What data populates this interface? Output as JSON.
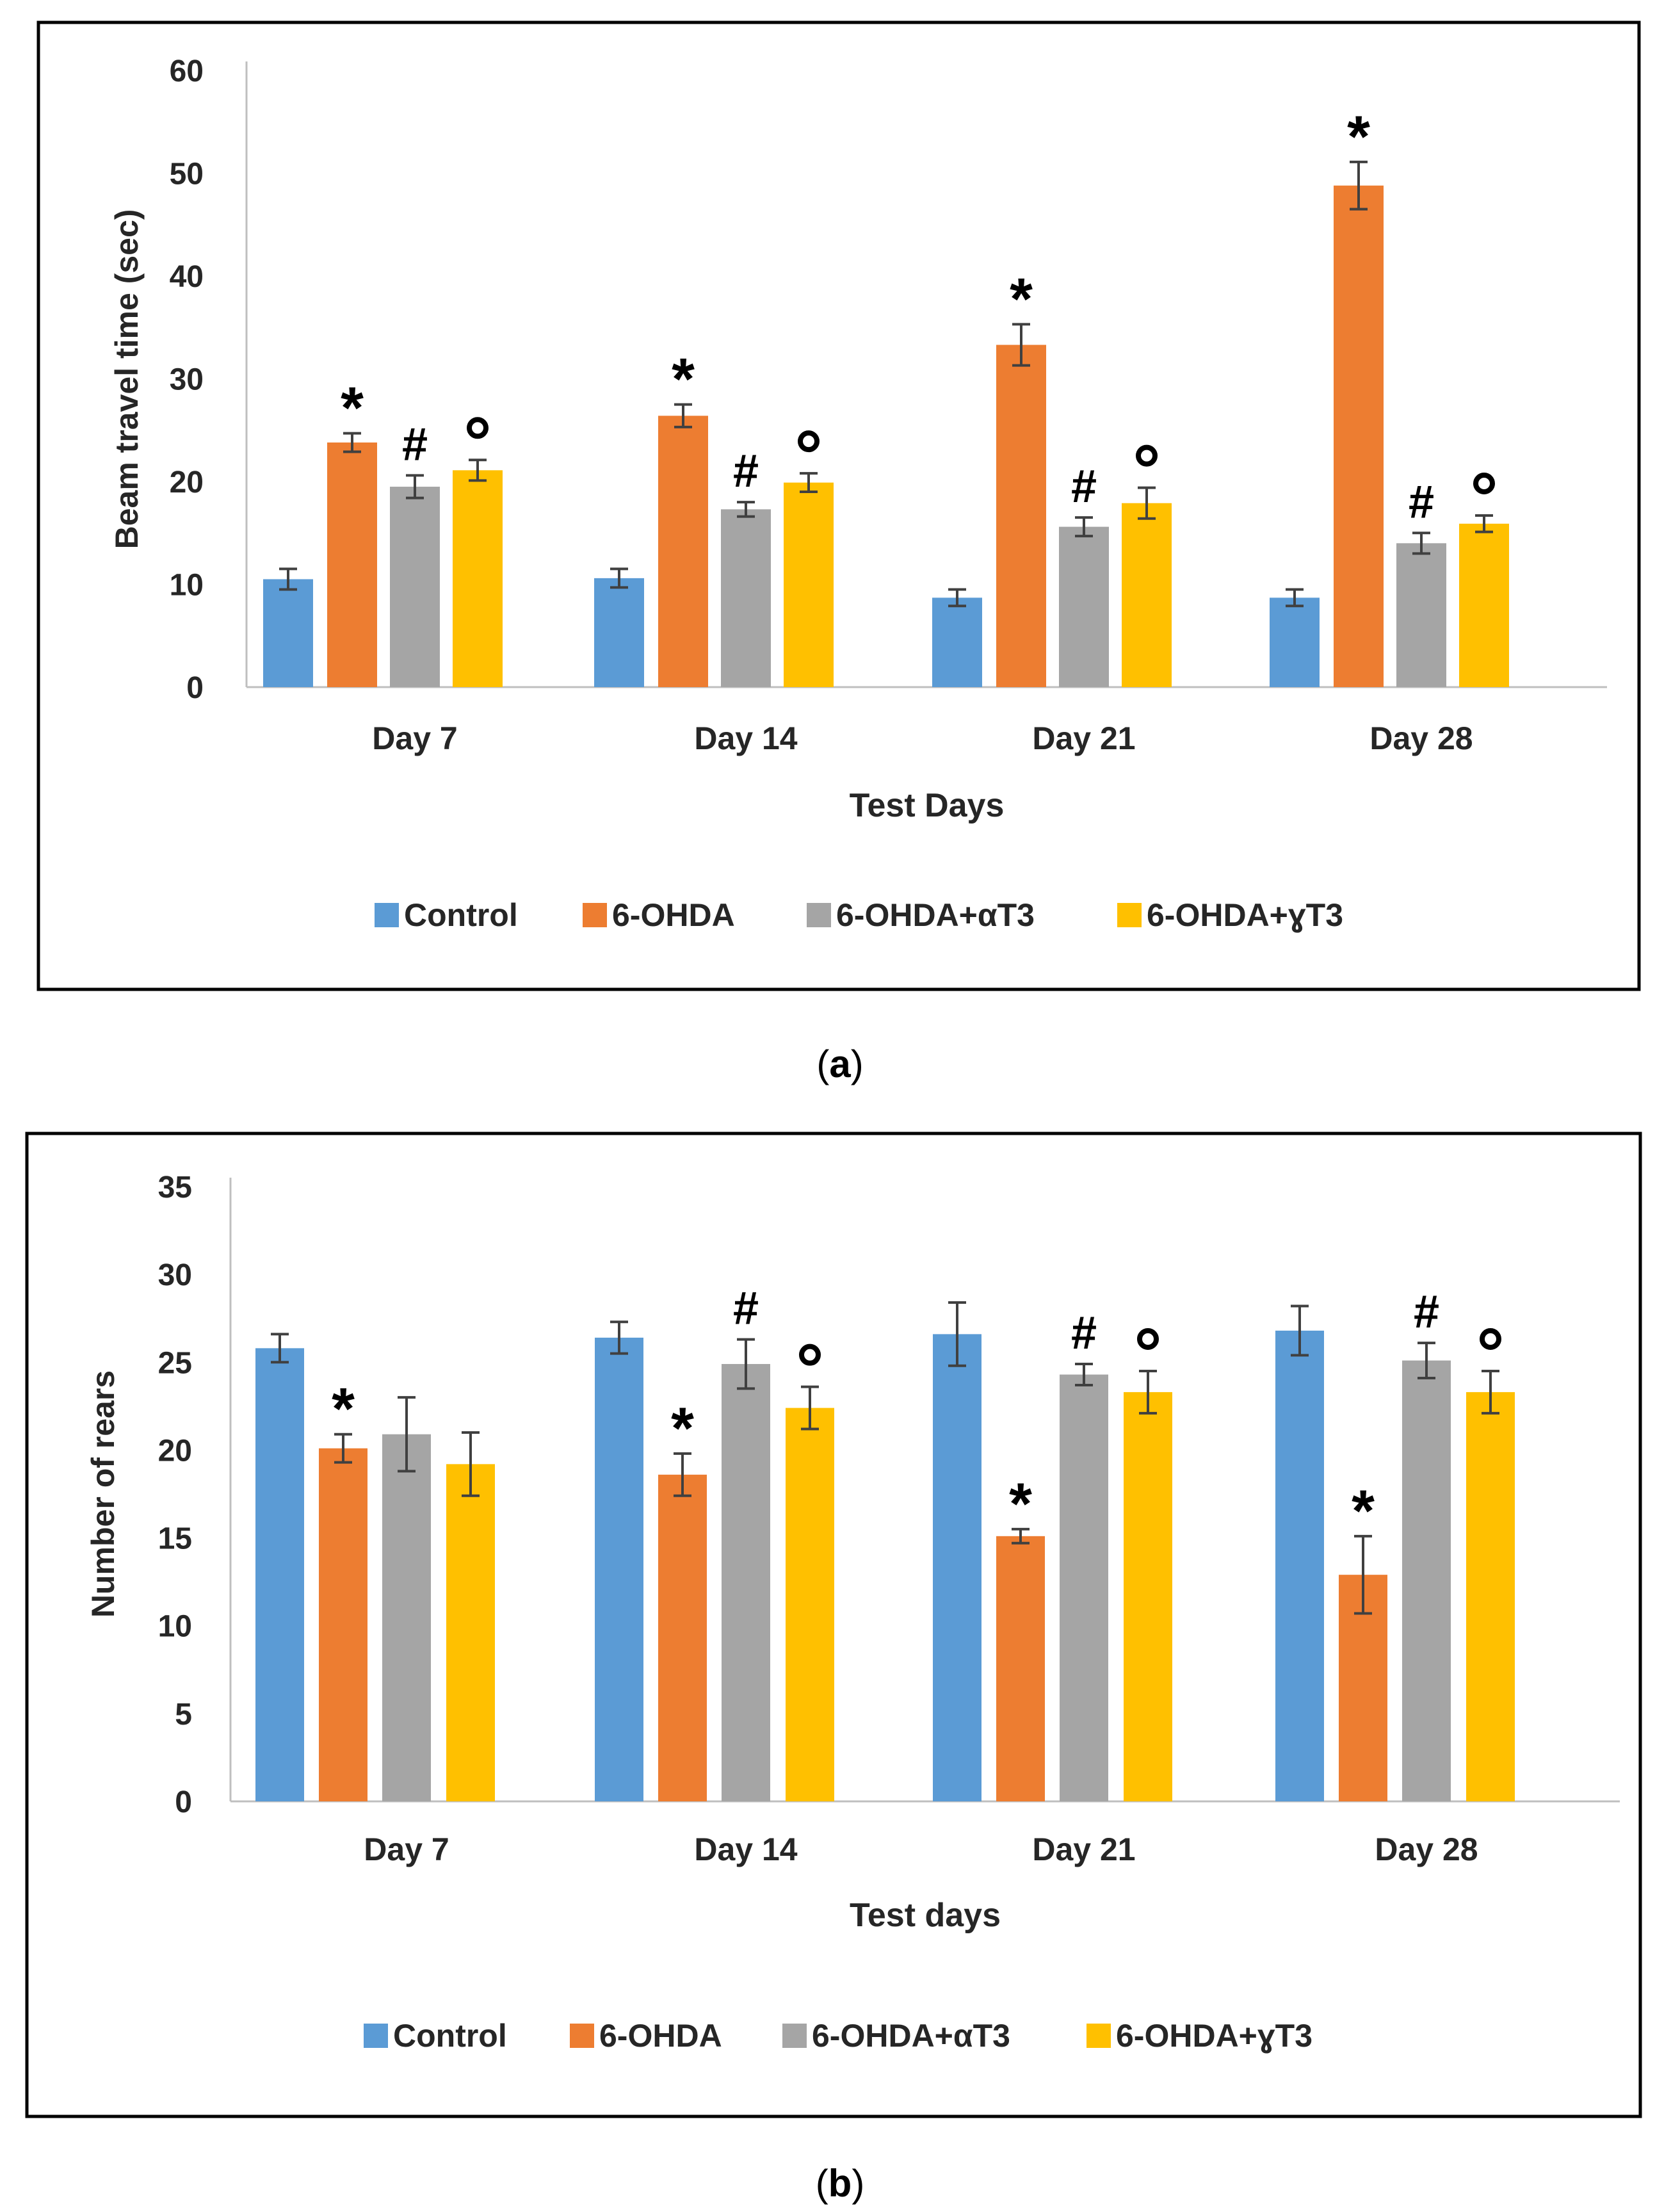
{
  "chart_data": [
    {
      "type": "bar",
      "panel_label": "a",
      "title": "",
      "xlabel": "Test Days",
      "ylabel": "Beam travel time (sec)",
      "ylim": [
        0,
        60
      ],
      "yticks": [
        0,
        10,
        20,
        30,
        40,
        50,
        60
      ],
      "categories": [
        "Day 7",
        "Day 14",
        "Day 21",
        "Day 28"
      ],
      "series": [
        {
          "name": "Control",
          "color": "#5B9BD5",
          "values": [
            10.5,
            10.6,
            8.7,
            8.7
          ],
          "errors": [
            1.0,
            0.9,
            0.8,
            0.8
          ],
          "markers": [
            "",
            "",
            "",
            ""
          ]
        },
        {
          "name": "6-OHDA",
          "color": "#ED7D31",
          "values": [
            23.8,
            26.4,
            33.3,
            48.8
          ],
          "errors": [
            0.9,
            1.1,
            2.0,
            2.3
          ],
          "markers": [
            "*",
            "*",
            "*",
            "*"
          ]
        },
        {
          "name": "6-OHDA+αT3",
          "color": "#A5A5A5",
          "values": [
            19.5,
            17.3,
            15.6,
            14.0
          ],
          "errors": [
            1.1,
            0.7,
            0.9,
            1.0
          ],
          "markers": [
            "#",
            "#",
            "#",
            "#"
          ]
        },
        {
          "name": "6-OHDA+ɣT3",
          "color": "#FFC000",
          "values": [
            21.1,
            19.9,
            17.9,
            15.9
          ],
          "errors": [
            1.0,
            0.9,
            1.5,
            0.8
          ],
          "markers": [
            "o",
            "o",
            "o",
            "o"
          ]
        }
      ],
      "legend": "bottom"
    },
    {
      "type": "bar",
      "panel_label": "b",
      "title": "",
      "xlabel": "Test days",
      "ylabel": "Number of rears",
      "ylim": [
        0,
        35
      ],
      "yticks": [
        0,
        5,
        10,
        15,
        20,
        25,
        30,
        35
      ],
      "categories": [
        "Day 7",
        "Day 14",
        "Day 21",
        "Day 28"
      ],
      "series": [
        {
          "name": "Control",
          "color": "#5B9BD5",
          "values": [
            25.8,
            26.4,
            26.6,
            26.8
          ],
          "errors": [
            0.8,
            0.9,
            1.8,
            1.4
          ],
          "markers": [
            "",
            "",
            "",
            ""
          ]
        },
        {
          "name": "6-OHDA",
          "color": "#ED7D31",
          "values": [
            20.1,
            18.6,
            15.1,
            12.9
          ],
          "errors": [
            0.8,
            1.2,
            0.4,
            2.2
          ],
          "markers": [
            "*",
            "*",
            "*",
            "*"
          ]
        },
        {
          "name": "6-OHDA+αT3",
          "color": "#A5A5A5",
          "values": [
            20.9,
            24.9,
            24.3,
            25.1
          ],
          "errors": [
            2.1,
            1.4,
            0.6,
            1.0
          ],
          "markers": [
            "",
            "#",
            "#",
            "#"
          ]
        },
        {
          "name": "6-OHDA+ɣT3",
          "color": "#FFC000",
          "values": [
            19.2,
            22.4,
            23.3,
            23.3
          ],
          "errors": [
            1.8,
            1.2,
            1.2,
            1.2
          ],
          "markers": [
            "",
            "o",
            "o",
            "o"
          ]
        }
      ],
      "legend": "bottom"
    }
  ]
}
